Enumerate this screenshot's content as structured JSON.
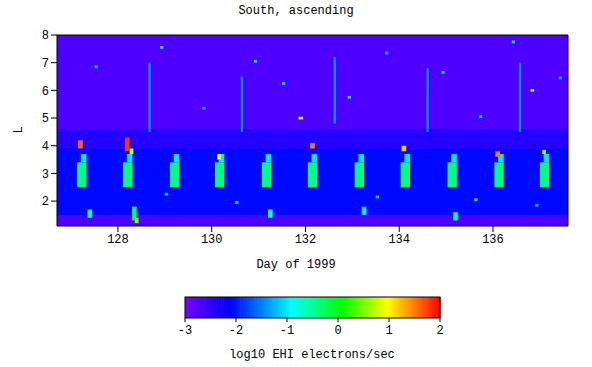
{
  "chart_data": {
    "type": "heatmap",
    "title": "South, ascending",
    "x_label": "Day of 1999",
    "y_label": "L",
    "xlim": [
      126.7,
      137.6
    ],
    "ylim": [
      1.1,
      8
    ],
    "xticks": [
      128,
      130,
      132,
      134,
      136
    ],
    "yticks": [
      2,
      3,
      4,
      5,
      6,
      7,
      8
    ],
    "grid": false,
    "cells": [
      [
        126.7,
        137.6,
        1.1,
        8,
        -2.7
      ],
      [
        126.7,
        137.6,
        3.9,
        4.6,
        -2.4
      ],
      [
        126.7,
        137.6,
        1.5,
        3.9,
        -2.1
      ],
      [
        127.13,
        127.33,
        2.5,
        3.4,
        -0.4
      ],
      [
        127.21,
        127.33,
        3.4,
        3.7,
        -1.0
      ],
      [
        128.11,
        128.31,
        2.5,
        3.4,
        -0.4
      ],
      [
        128.19,
        128.31,
        3.4,
        3.7,
        -1.0
      ],
      [
        129.11,
        129.31,
        2.5,
        3.4,
        -0.4
      ],
      [
        129.19,
        129.31,
        3.4,
        3.7,
        -1.0
      ],
      [
        130.07,
        130.27,
        2.5,
        3.4,
        -0.4
      ],
      [
        130.15,
        130.27,
        3.4,
        3.7,
        -1.0
      ],
      [
        131.07,
        131.27,
        2.5,
        3.4,
        -0.4
      ],
      [
        131.15,
        131.27,
        3.4,
        3.7,
        -1.0
      ],
      [
        132.05,
        132.25,
        2.5,
        3.4,
        -0.4
      ],
      [
        132.13,
        132.25,
        3.4,
        3.7,
        -1.0
      ],
      [
        133.05,
        133.25,
        2.5,
        3.4,
        -0.4
      ],
      [
        133.13,
        133.25,
        3.4,
        3.7,
        -1.0
      ],
      [
        134.03,
        134.23,
        2.5,
        3.4,
        -0.4
      ],
      [
        134.11,
        134.23,
        3.4,
        3.7,
        -1.0
      ],
      [
        135.03,
        135.23,
        2.5,
        3.4,
        -0.4
      ],
      [
        135.11,
        135.23,
        3.4,
        3.7,
        -1.0
      ],
      [
        136.03,
        136.23,
        2.5,
        3.4,
        -0.4
      ],
      [
        136.11,
        136.23,
        3.4,
        3.7,
        -1.0
      ],
      [
        137.0,
        137.2,
        2.5,
        3.4,
        -0.4
      ],
      [
        137.08,
        137.2,
        3.4,
        3.7,
        -1.0
      ],
      [
        127.15,
        127.25,
        3.9,
        4.2,
        1.6
      ],
      [
        128.15,
        128.25,
        3.8,
        4.3,
        1.8
      ],
      [
        128.25,
        128.33,
        3.7,
        3.9,
        0.8
      ],
      [
        130.12,
        130.2,
        3.5,
        3.7,
        0.9
      ],
      [
        132.1,
        132.2,
        3.9,
        4.1,
        1.5
      ],
      [
        134.05,
        134.15,
        3.8,
        4.0,
        1.2
      ],
      [
        136.05,
        136.15,
        3.6,
        3.8,
        1.5
      ],
      [
        137.05,
        137.13,
        3.7,
        3.85,
        0.6
      ],
      [
        131.85,
        131.95,
        4.95,
        5.05,
        0.7
      ],
      [
        136.8,
        136.88,
        5.95,
        6.05,
        0.6
      ],
      [
        128.3,
        128.4,
        1.3,
        1.8,
        -0.3
      ],
      [
        128.36,
        128.44,
        1.2,
        1.4,
        0.5
      ],
      [
        127.35,
        127.45,
        1.4,
        1.7,
        -0.8
      ],
      [
        131.2,
        131.3,
        1.4,
        1.7,
        -0.9
      ],
      [
        135.15,
        135.25,
        1.3,
        1.6,
        -0.7
      ],
      [
        133.2,
        133.3,
        1.5,
        1.8,
        -1.0
      ],
      [
        128.65,
        128.7,
        4.5,
        7.0,
        -1.4
      ],
      [
        130.62,
        130.67,
        4.5,
        6.5,
        -1.4
      ],
      [
        132.6,
        132.65,
        4.8,
        7.2,
        -1.4
      ],
      [
        134.58,
        134.63,
        4.5,
        6.8,
        -1.4
      ],
      [
        136.55,
        136.6,
        4.5,
        7.0,
        -1.4
      ],
      [
        127.5,
        127.57,
        6.8,
        6.9,
        -1.1
      ],
      [
        128.9,
        128.97,
        7.5,
        7.6,
        -1.0
      ],
      [
        129.8,
        129.87,
        5.3,
        5.4,
        -1.2
      ],
      [
        130.9,
        130.97,
        7.0,
        7.1,
        -1.0
      ],
      [
        131.5,
        131.57,
        6.2,
        6.3,
        -1.1
      ],
      [
        132.9,
        132.97,
        5.7,
        5.8,
        -1.0
      ],
      [
        133.7,
        133.77,
        7.3,
        7.4,
        -1.2
      ],
      [
        134.9,
        134.97,
        6.6,
        6.7,
        -1.0
      ],
      [
        135.7,
        135.77,
        5.0,
        5.1,
        -1.1
      ],
      [
        136.4,
        136.47,
        7.7,
        7.8,
        -1.0
      ],
      [
        137.4,
        137.47,
        6.4,
        6.5,
        -1.2
      ],
      [
        129.0,
        129.07,
        2.2,
        2.3,
        -1.1
      ],
      [
        130.5,
        130.57,
        1.9,
        2.0,
        -1.0
      ],
      [
        133.5,
        133.57,
        2.1,
        2.2,
        -1.1
      ],
      [
        135.6,
        135.67,
        2.0,
        2.1,
        -1.0
      ],
      [
        136.9,
        136.97,
        1.8,
        1.9,
        -1.2
      ]
    ],
    "colorbar": {
      "range": [
        -3,
        2
      ],
      "ticks": [
        -3,
        -2,
        -1,
        0,
        1,
        2
      ],
      "label": "log10 EHI electrons/sec"
    }
  }
}
